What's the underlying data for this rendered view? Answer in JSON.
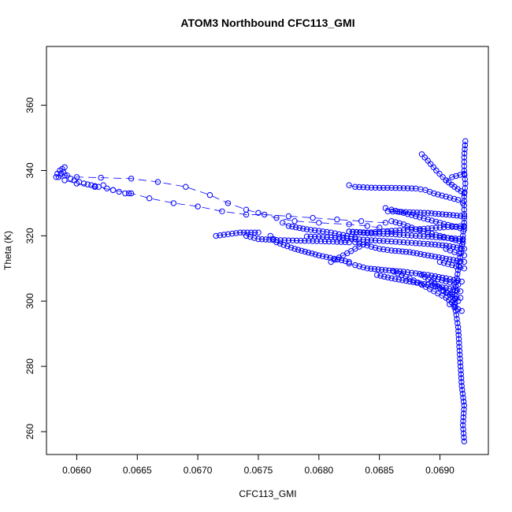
{
  "chart_data": {
    "type": "scatter",
    "title": "ATOM3 Northbound CFC113_GMI",
    "xlabel": "CFC113_GMI",
    "ylabel": "Theta (K)",
    "xlim": [
      0.06575,
      0.0694
    ],
    "ylim": [
      253,
      378
    ],
    "x_ticks": [
      0.066,
      0.0665,
      0.067,
      0.0675,
      0.068,
      0.0685,
      0.069
    ],
    "x_tick_labels": [
      "0.0660",
      "0.0665",
      "0.0670",
      "0.0675",
      "0.0680",
      "0.0685",
      "0.0690"
    ],
    "y_ticks": [
      260,
      280,
      300,
      320,
      340,
      360
    ],
    "y_tick_labels": [
      "260",
      "280",
      "300",
      "320",
      "340",
      "360"
    ],
    "grid": false,
    "series": [
      {
        "style": "points-and-line",
        "color": "#0000ff",
        "segments": [
          [
            [
              0.0692,
              257
            ],
            [
              0.06919,
              262
            ],
            [
              0.0692,
              268
            ],
            [
              0.06918,
              274
            ],
            [
              0.06917,
              280
            ],
            [
              0.06916,
              286
            ],
            [
              0.06915,
              292
            ],
            [
              0.06913,
              297
            ],
            [
              0.06912,
              302
            ],
            [
              0.06914,
              307
            ],
            [
              0.06916,
              312
            ],
            [
              0.06918,
              316
            ],
            [
              0.06919,
              320
            ],
            [
              0.0692,
              324
            ],
            [
              0.0692,
              328
            ],
            [
              0.0692,
              332
            ],
            [
              0.06921,
              336
            ],
            [
              0.0692,
              340
            ],
            [
              0.0692,
              344
            ],
            [
              0.06921,
              349
            ]
          ],
          [
            [
              0.06919,
              330
            ],
            [
              0.06915,
              331
            ],
            [
              0.06905,
              332
            ],
            [
              0.06895,
              333
            ],
            [
              0.06888,
              334
            ],
            [
              0.0688,
              334.5
            ],
            [
              0.0687,
              334.6
            ],
            [
              0.0686,
              334.7
            ],
            [
              0.0685,
              334.7
            ],
            [
              0.0684,
              334.8
            ],
            [
              0.0683,
              335
            ],
            [
              0.06825,
              335.5
            ]
          ],
          [
            [
              0.0692,
              333
            ],
            [
              0.06912,
              335
            ],
            [
              0.06905,
              337
            ],
            [
              0.06897,
              340
            ],
            [
              0.0689,
              343
            ],
            [
              0.06885,
              345
            ]
          ],
          [
            [
              0.0692,
              322
            ],
            [
              0.0691,
              323
            ],
            [
              0.069,
              324
            ],
            [
              0.0689,
              325
            ],
            [
              0.0688,
              326
            ],
            [
              0.0687,
              327
            ],
            [
              0.0686,
              328
            ],
            [
              0.06855,
              328.5
            ]
          ],
          [
            [
              0.0692,
              326
            ],
            [
              0.06905,
              326.5
            ],
            [
              0.0689,
              327
            ],
            [
              0.06875,
              327.2
            ],
            [
              0.06865,
              327.4
            ],
            [
              0.06857,
              327.5
            ]
          ],
          [
            [
              0.06919,
              318
            ],
            [
              0.0691,
              319
            ],
            [
              0.069,
              320
            ],
            [
              0.0689,
              321
            ],
            [
              0.0688,
              322
            ],
            [
              0.0687,
              323.5
            ],
            [
              0.0686,
              324.5
            ]
          ],
          [
            [
              0.0692,
              312
            ],
            [
              0.06905,
              313
            ],
            [
              0.0689,
              314
            ],
            [
              0.06875,
              315
            ],
            [
              0.0686,
              315.5
            ],
            [
              0.0685,
              316
            ],
            [
              0.0684,
              317
            ],
            [
              0.0683,
              318
            ]
          ],
          [
            [
              0.06918,
              306
            ],
            [
              0.06905,
              307
            ],
            [
              0.0689,
              308
            ],
            [
              0.0687,
              309
            ],
            [
              0.06855,
              309.5
            ],
            [
              0.0684,
              310
            ],
            [
              0.0683,
              311
            ],
            [
              0.06825,
              311.5
            ]
          ],
          [
            [
              0.06917,
              303
            ],
            [
              0.06905,
              304
            ],
            [
              0.0689,
              305
            ],
            [
              0.06875,
              306
            ],
            [
              0.0686,
              307
            ],
            [
              0.06848,
              308
            ]
          ],
          [
            [
              0.06912,
              299
            ],
            [
              0.06905,
              301
            ],
            [
              0.06895,
              303
            ],
            [
              0.06885,
              305
            ],
            [
              0.06875,
              307
            ],
            [
              0.06862,
              309
            ]
          ],
          [
            [
              0.06915,
              300
            ],
            [
              0.06908,
              302
            ],
            [
              0.069,
              304
            ],
            [
              0.06893,
              306
            ],
            [
              0.06885,
              308
            ]
          ],
          [
            [
              0.0692,
              316
            ],
            [
              0.06905,
              317
            ],
            [
              0.0689,
              317.5
            ],
            [
              0.0687,
              318
            ],
            [
              0.0685,
              318.5
            ],
            [
              0.0683,
              319
            ],
            [
              0.0681,
              319.5
            ],
            [
              0.0679,
              319.8
            ]
          ],
          [
            [
              0.06919,
              319
            ],
            [
              0.069,
              319.5
            ],
            [
              0.0688,
              320
            ],
            [
              0.0686,
              320.5
            ],
            [
              0.0684,
              320.8
            ],
            [
              0.06825,
              321.3
            ]
          ],
          [
            [
              0.0692,
              323
            ],
            [
              0.069,
              322.5
            ],
            [
              0.0688,
              322
            ],
            [
              0.0686,
              321.5
            ],
            [
              0.0684,
              321
            ],
            [
              0.06825,
              321.3
            ]
          ],
          [
            [
              0.06825,
              318
            ],
            [
              0.06805,
              318.3
            ],
            [
              0.06785,
              318.5
            ],
            [
              0.06765,
              318.7
            ],
            [
              0.0675,
              319
            ],
            [
              0.0674,
              320
            ]
          ],
          [
            [
              0.0683,
              319.5
            ],
            [
              0.0681,
              321
            ],
            [
              0.0679,
              322
            ],
            [
              0.06775,
              323
            ],
            [
              0.0677,
              324
            ]
          ],
          [
            [
              0.0684,
              318
            ],
            [
              0.0683,
              316
            ],
            [
              0.0682,
              314
            ],
            [
              0.0681,
              312
            ]
          ],
          [
            [
              0.0675,
              321
            ],
            [
              0.06735,
              321
            ],
            [
              0.06725,
              320.5
            ],
            [
              0.06715,
              320
            ]
          ],
          [
            [
              0.06825,
              312
            ],
            [
              0.068,
              314
            ],
            [
              0.0678,
              316
            ],
            [
              0.06765,
              318
            ],
            [
              0.0676,
              320
            ]
          ],
          [
            [
              0.0692,
              339
            ],
            [
              0.0691,
              338
            ],
            [
              0.06905,
              337
            ]
          ],
          [
            [
              0.06915,
              305
            ],
            [
              0.06905,
              306
            ],
            [
              0.06895,
              307
            ]
          ],
          [
            [
              0.0692,
              310
            ],
            [
              0.0691,
              311
            ],
            [
              0.069,
              312
            ]
          ],
          [
            [
              0.0692,
              314
            ],
            [
              0.06912,
              315
            ],
            [
              0.06905,
              316
            ]
          ],
          [
            [
              0.06917,
              301
            ],
            [
              0.0691,
              302
            ],
            [
              0.06903,
              303
            ]
          ],
          [
            [
              0.06918,
              297
            ],
            [
              0.06912,
              298
            ],
            [
              0.06908,
              299
            ]
          ]
        ]
      },
      {
        "style": "points-and-line-dashed",
        "color": "#0000ff",
        "segments": [
          [
            [
              0.0686,
              321.5
            ],
            [
              0.0685,
              322.5
            ],
            [
              0.0684,
              323
            ],
            [
              0.06825,
              323.5
            ],
            [
              0.068,
              324
            ],
            [
              0.0678,
              324.5
            ],
            [
              0.06765,
              325.5
            ],
            [
              0.0675,
              327
            ],
            [
              0.0674,
              328
            ],
            [
              0.06725,
              330
            ],
            [
              0.0671,
              332.5
            ],
            [
              0.0669,
              335
            ],
            [
              0.06667,
              336.5
            ],
            [
              0.06645,
              337.5
            ],
            [
              0.0662,
              337.8
            ],
            [
              0.066,
              338
            ],
            [
              0.0659,
              338.5
            ],
            [
              0.06587,
              339
            ]
          ],
          [
            [
              0.06855,
              324
            ],
            [
              0.06835,
              324.5
            ],
            [
              0.06815,
              325
            ],
            [
              0.06795,
              325.5
            ],
            [
              0.06775,
              326
            ],
            [
              0.06755,
              326.5
            ],
            [
              0.0674,
              326.5
            ],
            [
              0.0672,
              327.5
            ],
            [
              0.067,
              329
            ],
            [
              0.0668,
              330
            ],
            [
              0.0666,
              331.5
            ],
            [
              0.06645,
              333
            ],
            [
              0.0663,
              334
            ],
            [
              0.06615,
              335
            ],
            [
              0.066,
              336
            ],
            [
              0.0659,
              337
            ],
            [
              0.06585,
              338
            ]
          ]
        ]
      },
      {
        "style": "points",
        "color": "#0000ff",
        "segments": [
          [
            [
              0.06583,
              338
            ],
            [
              0.06584,
              339
            ],
            [
              0.06586,
              340
            ],
            [
              0.06588,
              340.5
            ],
            [
              0.0659,
              341
            ],
            [
              0.06589,
              339.5
            ],
            [
              0.06592,
              338.5
            ],
            [
              0.06595,
              337.5
            ],
            [
              0.06598,
              337
            ],
            [
              0.06602,
              336.5
            ],
            [
              0.06606,
              336
            ],
            [
              0.06612,
              335.5
            ],
            [
              0.06618,
              335
            ],
            [
              0.06622,
              335.5
            ],
            [
              0.06625,
              334.5
            ],
            [
              0.0663,
              334
            ],
            [
              0.06635,
              333.5
            ],
            [
              0.0664,
              333
            ],
            [
              0.06643,
              333
            ]
          ]
        ]
      }
    ]
  }
}
